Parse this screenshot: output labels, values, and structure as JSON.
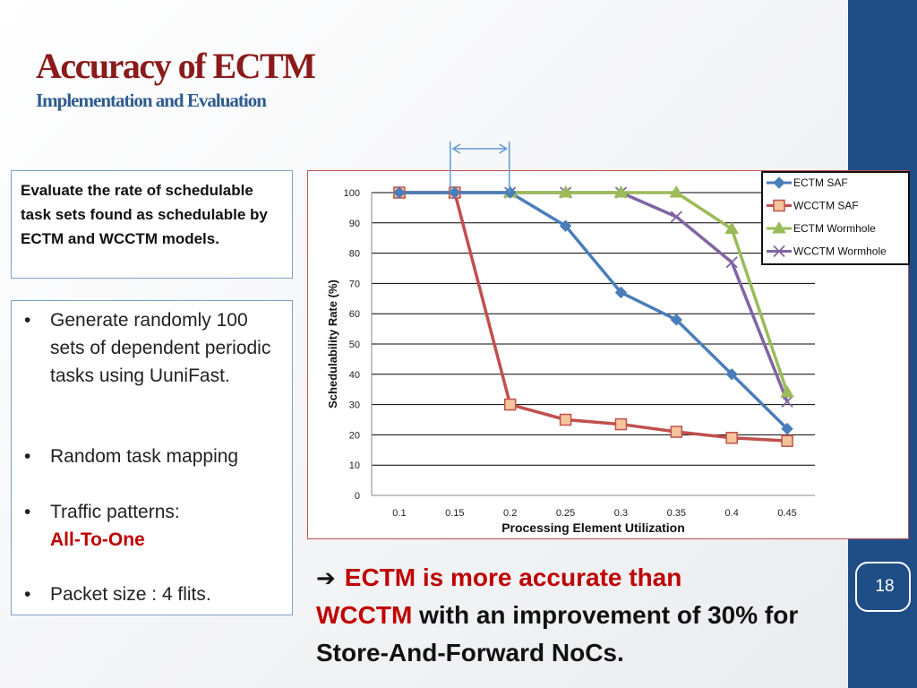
{
  "slide": {
    "title": "Accuracy of  ECTM",
    "subtitle": "Implementation and Evaluation",
    "page_number": "18"
  },
  "description": "Evaluate the rate of schedulable task sets found as schedulable by ECTM and WCCTM models.",
  "bullets": [
    {
      "text": "Generate randomly 100 sets of dependent periodic tasks using UuniFast."
    },
    {
      "text": "Random task mapping"
    },
    {
      "text": "Traffic patterns:",
      "highlight": "All-To-One"
    },
    {
      "text": "Packet size : 4 flits."
    }
  ],
  "bullet_glyph": "•",
  "conclusion": {
    "arrow": "➔",
    "lead": "ECTM is more accurate than",
    "model": "WCCTM",
    "rest": " with an improvement of 30% for Store-And-Forward NoCs."
  },
  "colors": {
    "title": "#8b1a1a",
    "subtitle": "#2e5b8f",
    "accent": "#c00000",
    "sidebar": "#1f4e86",
    "box_border": "#7ea1c8",
    "annotation_arrow": "#5b9bd5"
  },
  "chart_data": {
    "type": "line",
    "categories": [
      "0.1",
      "0.15",
      "0.2",
      "0.25",
      "0.3",
      "0.35",
      "0.4",
      "0.45"
    ],
    "xlabel": "Processing Element Utilization",
    "ylabel": "Schedulability Rate (%)",
    "ylim": [
      0,
      100
    ],
    "yticks": [
      0,
      10,
      20,
      30,
      40,
      50,
      60,
      70,
      80,
      90,
      100
    ],
    "grid": true,
    "legend_position": "top-right",
    "annotation": "double-headed arrow spanning x = 0.15 to 0.2 above the plot",
    "series": [
      {
        "name": "ECTM SAF",
        "color": "#4a7ebb",
        "marker": "diamond",
        "values": [
          100,
          100,
          100,
          89,
          67,
          58,
          40,
          22
        ]
      },
      {
        "name": "WCCTM SAF",
        "color": "#c0504d",
        "marker": "square",
        "values": [
          100,
          100,
          30,
          25,
          23.5,
          21,
          19,
          18
        ]
      },
      {
        "name": "ECTM Wormhole",
        "color": "#9bbb59",
        "marker": "triangle",
        "values": [
          100,
          100,
          100,
          100,
          100,
          100,
          88,
          34
        ]
      },
      {
        "name": "WCCTM Wormhole",
        "color": "#8064a2",
        "marker": "x",
        "values": [
          100,
          100,
          100,
          100,
          100,
          92,
          77,
          31
        ]
      }
    ]
  }
}
